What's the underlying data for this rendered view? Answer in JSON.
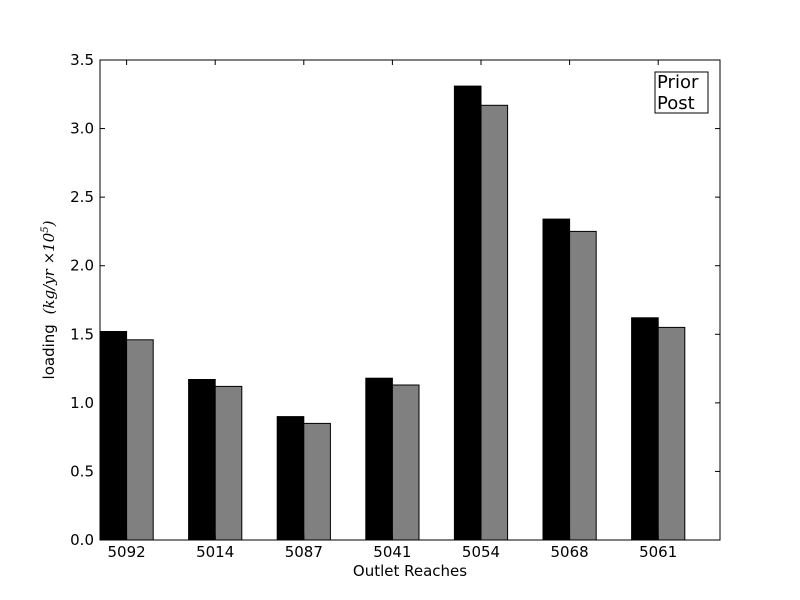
{
  "chart_data": {
    "type": "bar",
    "title": "",
    "xlabel": "Outlet Reaches",
    "ylabel": {
      "text": "loading",
      "unit_expr": "(kg/yr ×10",
      "exponent": "5",
      "close": ")"
    },
    "categories": [
      "5092",
      "5014",
      "5087",
      "5041",
      "5054",
      "5068",
      "5061"
    ],
    "series": [
      {
        "name": "Prior",
        "color": "#000000",
        "values": [
          1.52,
          1.17,
          0.9,
          1.18,
          3.31,
          2.34,
          1.62
        ]
      },
      {
        "name": "Post",
        "color": "#808080",
        "values": [
          1.46,
          1.12,
          0.85,
          1.13,
          3.17,
          2.25,
          1.55
        ]
      }
    ],
    "ylim": [
      0,
      3.5
    ],
    "yticks": [
      "0.0",
      "0.5",
      "1.0",
      "1.5",
      "2.0",
      "2.5",
      "3.0",
      "3.5"
    ],
    "grid": false,
    "legend_placement": "top-right"
  }
}
